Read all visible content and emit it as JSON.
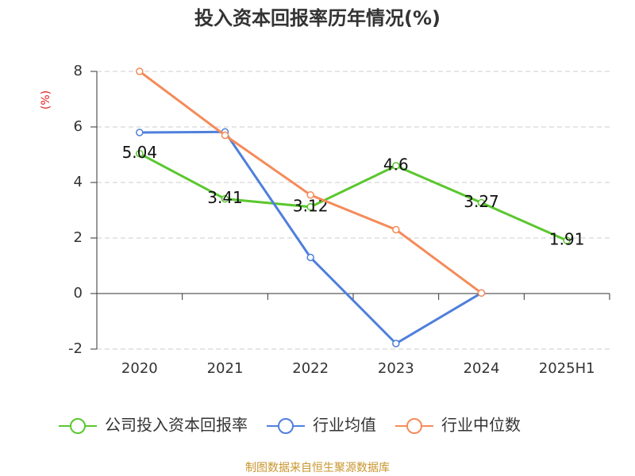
{
  "chart_data": {
    "type": "line",
    "title": "投入资本回报率历年情况(%)",
    "y_label": "(%)",
    "categories": [
      "2020",
      "2021",
      "2022",
      "2023",
      "2024",
      "2025H1"
    ],
    "series": [
      {
        "name": "公司投入资本回报率",
        "color": "#5ac72e",
        "values": [
          5.04,
          3.41,
          3.12,
          4.6,
          3.27,
          1.91
        ],
        "labels": true
      },
      {
        "name": "行业均值",
        "color": "#4f7fdc",
        "values": [
          5.8,
          5.82,
          1.3,
          -1.8,
          0.02,
          null
        ]
      },
      {
        "name": "行业中位数",
        "color": "#f58b5a",
        "values": [
          8.0,
          5.7,
          3.55,
          2.3,
          0.02,
          null
        ]
      }
    ],
    "ylim": [
      -2,
      8
    ],
    "yticks": [
      -2,
      0,
      2,
      4,
      6,
      8
    ],
    "grid": true,
    "source": "制图数据来自恒生聚源数据库"
  }
}
